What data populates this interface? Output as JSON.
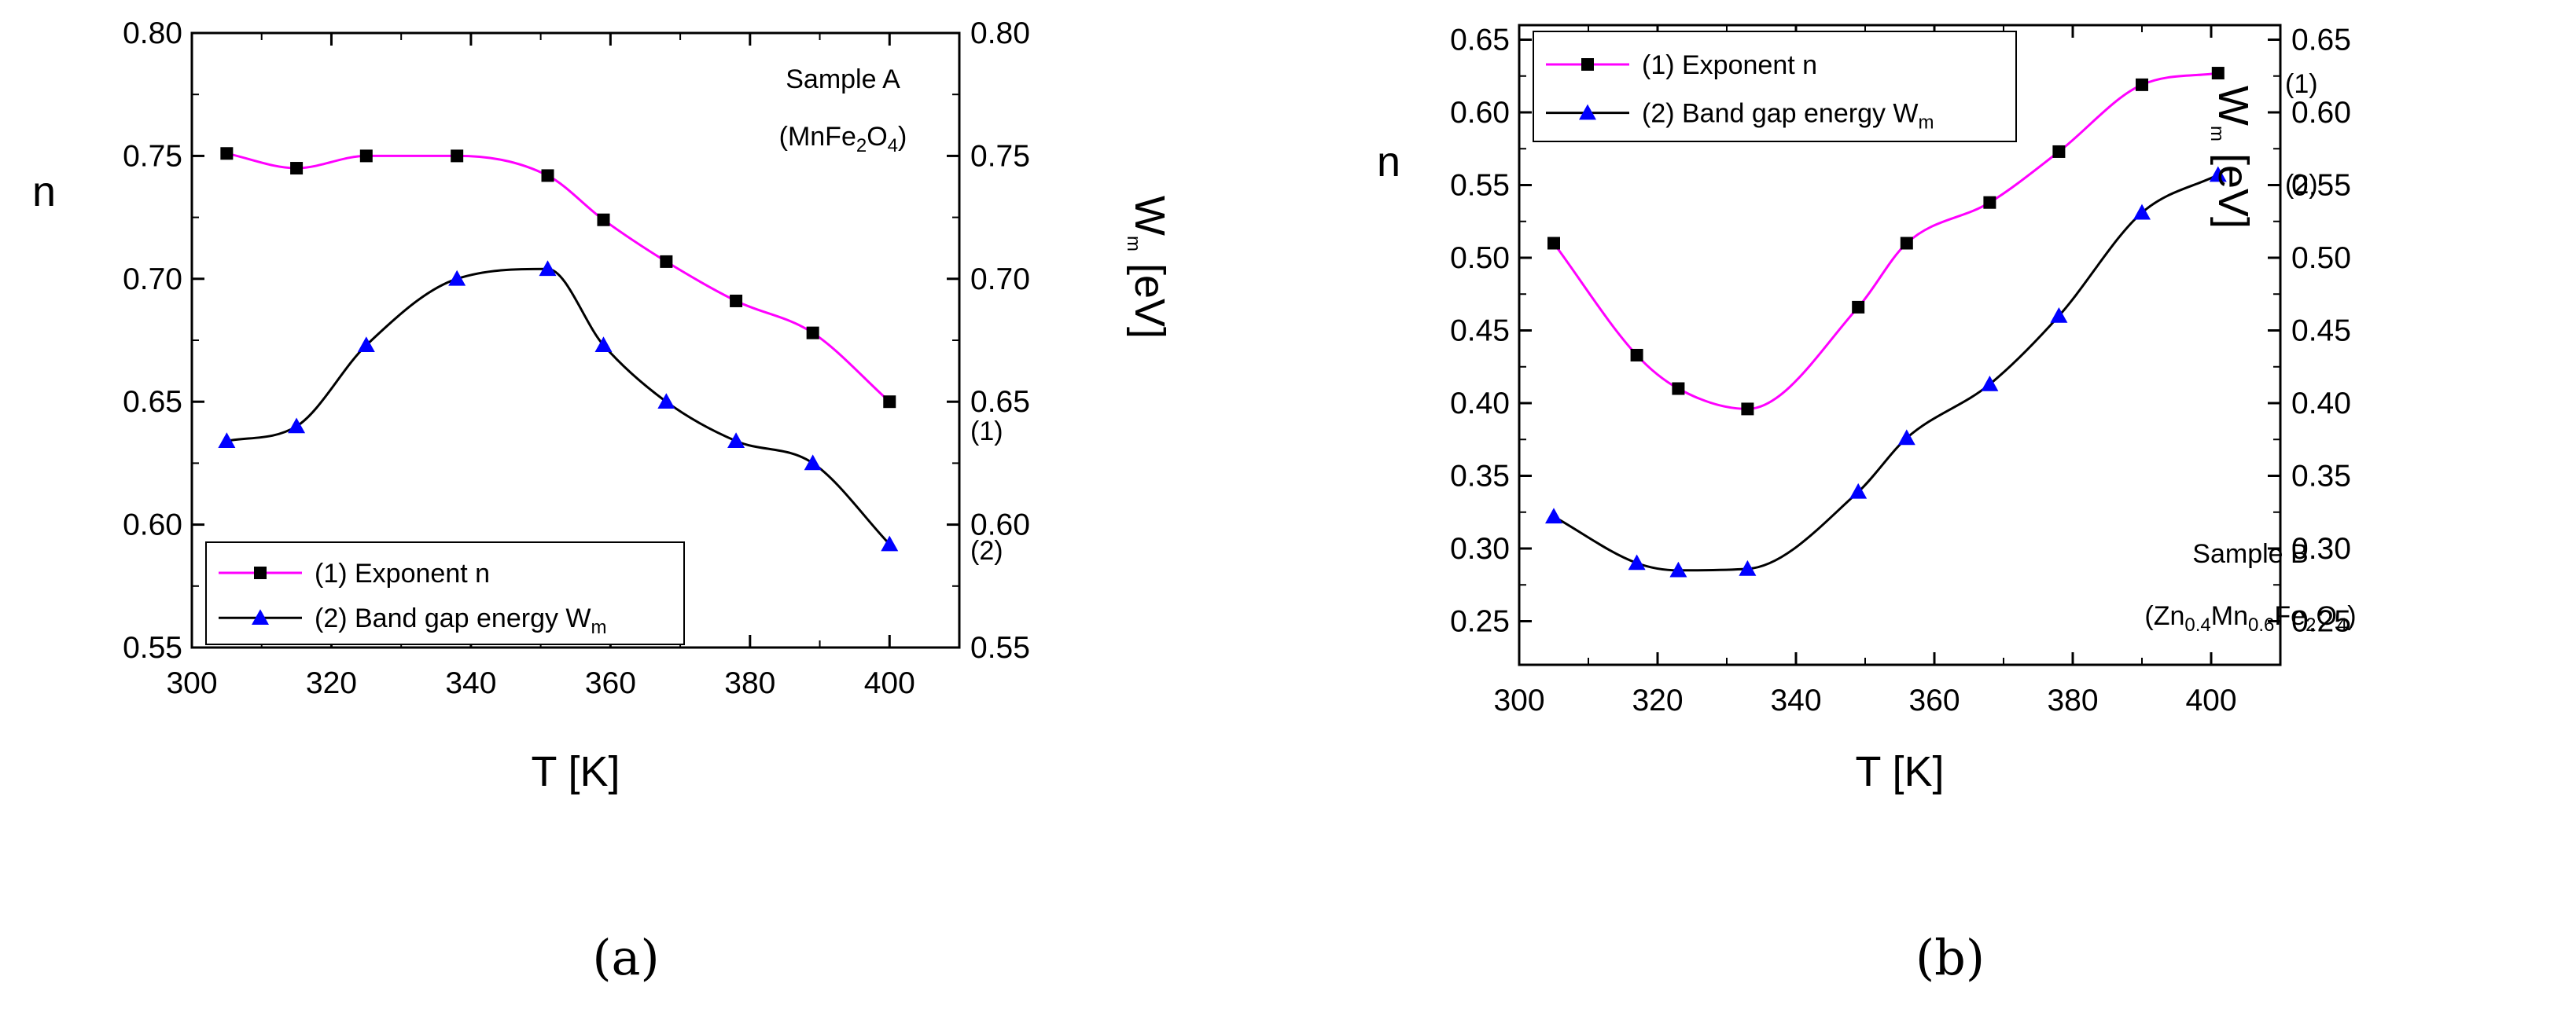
{
  "chart_data": [
    {
      "type": "line",
      "panel_label": "(a)",
      "xlabel": "T [K]",
      "ylabel_left": "n",
      "ylabel_right": "W",
      "ylabel_right_sub": "m",
      "ylabel_right_unit": " [eV]",
      "xlim": [
        300,
        410
      ],
      "ylim": [
        0.55,
        0.8
      ],
      "xticks": [
        "300",
        "320",
        "340",
        "360",
        "380",
        "400"
      ],
      "yticks": [
        "0.55",
        "0.60",
        "0.65",
        "0.70",
        "0.75",
        "0.80"
      ],
      "sample_name": "Sample A",
      "formula_parts": [
        "(MnFe",
        "2",
        "O",
        "4",
        ")"
      ],
      "legend_position": "bottom-left",
      "series": [
        {
          "name": "(1) Exponent n",
          "color": "#ff00ff",
          "marker_color": "#000000",
          "marker": "square",
          "end_label": "(1)",
          "x": [
            305,
            315,
            325,
            338,
            351,
            359,
            368,
            378,
            389,
            400
          ],
          "values": [
            0.751,
            0.745,
            0.75,
            0.75,
            0.742,
            0.724,
            0.707,
            0.691,
            0.678,
            0.65
          ]
        },
        {
          "name": "(2) Band gap energy W",
          "name_sub": "m",
          "color": "#000000",
          "marker_color": "#0000ff",
          "marker": "triangle",
          "end_label": "(2)",
          "x": [
            305,
            315,
            325,
            338,
            351,
            359,
            368,
            378,
            389,
            400
          ],
          "values": [
            0.634,
            0.64,
            0.673,
            0.7,
            0.704,
            0.673,
            0.65,
            0.634,
            0.625,
            0.592
          ]
        }
      ]
    },
    {
      "type": "line",
      "panel_label": "(b)",
      "xlabel": "T [K]",
      "ylabel_left": "n",
      "ylabel_right": "W",
      "ylabel_right_sub": "m",
      "ylabel_right_unit": " [eV]",
      "xlim": [
        300,
        410
      ],
      "ylim": [
        0.22,
        0.66
      ],
      "xticks": [
        "300",
        "320",
        "340",
        "360",
        "380",
        "400"
      ],
      "yticks": [
        "0.25",
        "0.30",
        "0.35",
        "0.40",
        "0.45",
        "0.50",
        "0.55",
        "0.60",
        "0.65"
      ],
      "sample_name": "Sample B",
      "formula_parts": [
        "(Zn",
        "0.4",
        "Mn",
        "0.6",
        "Fe",
        "2",
        "O",
        "4",
        ")"
      ],
      "legend_position": "top-left",
      "series": [
        {
          "name": "(1) Exponent n",
          "color": "#ff00ff",
          "marker_color": "#000000",
          "marker": "square",
          "end_label": "(1)",
          "x": [
            305,
            317,
            323,
            333,
            349,
            356,
            368,
            378,
            390,
            401
          ],
          "values": [
            0.51,
            0.433,
            0.41,
            0.396,
            0.466,
            0.51,
            0.538,
            0.573,
            0.619,
            0.627
          ]
        },
        {
          "name": "(2) Band gap energy W",
          "name_sub": "m",
          "color": "#000000",
          "marker_color": "#0000ff",
          "marker": "triangle",
          "end_label": "(2)",
          "x": [
            305,
            317,
            323,
            333,
            349,
            356,
            368,
            378,
            390,
            401
          ],
          "values": [
            0.322,
            0.29,
            0.285,
            0.286,
            0.339,
            0.376,
            0.413,
            0.46,
            0.531,
            0.557
          ]
        }
      ]
    }
  ]
}
